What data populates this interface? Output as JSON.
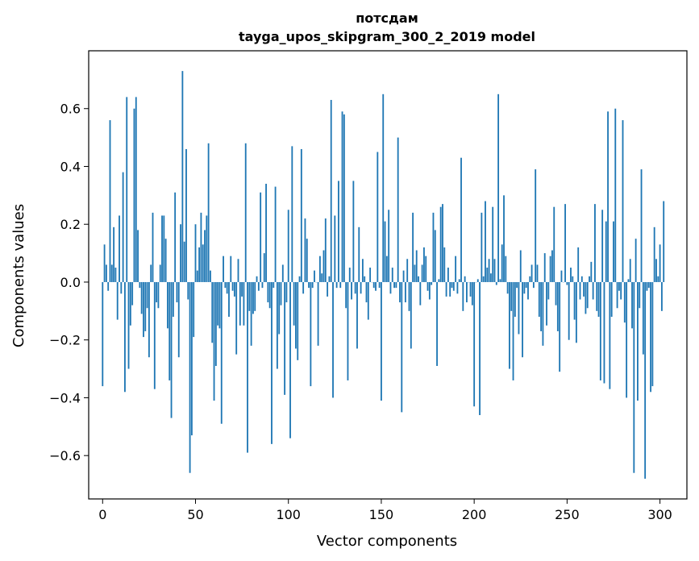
{
  "chart_data": {
    "type": "bar",
    "title": "потсдам",
    "subtitle": "tayga_upos_skipgram_300_2_2019 model",
    "xlabel": "Vector components",
    "ylabel": "Components values",
    "xlim": [
      -7.5,
      314.5
    ],
    "ylim": [
      -0.75,
      0.8
    ],
    "xticks": [
      0,
      50,
      100,
      150,
      200,
      250,
      300
    ],
    "yticks": [
      -0.6,
      -0.4,
      -0.2,
      0.0,
      0.2,
      0.4,
      0.6
    ],
    "ytick_labels": [
      "−0.6",
      "−0.4",
      "−0.2",
      "0.0",
      "0.2",
      "0.4",
      "0.6"
    ],
    "bar_color": "#1f77b4",
    "grid": false,
    "values": [
      -0.36,
      0.13,
      0.06,
      -0.03,
      0.56,
      0.06,
      0.19,
      0.05,
      -0.13,
      0.23,
      -0.04,
      0.38,
      -0.38,
      0.64,
      -0.3,
      -0.15,
      -0.08,
      0.6,
      0.64,
      0.18,
      -0.02,
      -0.11,
      -0.19,
      -0.17,
      -0.09,
      -0.26,
      0.06,
      0.24,
      -0.37,
      -0.07,
      -0.09,
      0.06,
      0.23,
      0.23,
      0.15,
      -0.16,
      -0.34,
      -0.47,
      -0.12,
      0.31,
      -0.07,
      -0.26,
      0.2,
      0.73,
      0.14,
      0.46,
      -0.06,
      -0.66,
      -0.53,
      -0.19,
      0.2,
      0.04,
      0.12,
      0.24,
      0.13,
      0.18,
      0.23,
      0.48,
      0.04,
      -0.21,
      -0.41,
      -0.29,
      -0.15,
      -0.16,
      -0.49,
      0.09,
      -0.02,
      -0.04,
      -0.12,
      0.09,
      -0.03,
      -0.05,
      -0.25,
      0.08,
      -0.15,
      -0.05,
      -0.15,
      0.48,
      -0.59,
      -0.1,
      -0.22,
      -0.11,
      -0.1,
      0.02,
      -0.03,
      0.31,
      -0.02,
      0.1,
      0.34,
      -0.07,
      -0.09,
      -0.56,
      -0.02,
      0.33,
      -0.3,
      -0.18,
      -0.08,
      0.06,
      -0.39,
      -0.07,
      0.25,
      -0.54,
      0.47,
      -0.15,
      -0.23,
      -0.27,
      0.02,
      0.46,
      -0.04,
      0.22,
      0.15,
      -0.02,
      -0.36,
      -0.02,
      0.04,
      0.0,
      -0.22,
      0.09,
      0.03,
      0.11,
      0.22,
      -0.05,
      0.02,
      0.63,
      -0.4,
      0.23,
      -0.02,
      0.35,
      -0.02,
      0.59,
      0.58,
      -0.09,
      -0.34,
      0.05,
      -0.06,
      0.35,
      -0.04,
      -0.23,
      0.19,
      -0.04,
      0.08,
      0.02,
      -0.07,
      -0.13,
      0.05,
      0.0,
      -0.02,
      -0.03,
      0.45,
      -0.02,
      -0.41,
      0.65,
      0.21,
      0.09,
      0.25,
      -0.04,
      0.05,
      -0.02,
      -0.02,
      0.5,
      -0.07,
      -0.45,
      0.04,
      -0.07,
      0.08,
      -0.1,
      -0.23,
      0.24,
      0.06,
      0.11,
      0.02,
      -0.08,
      0.06,
      0.12,
      0.09,
      -0.03,
      -0.06,
      -0.01,
      0.24,
      0.18,
      -0.29,
      0.01,
      0.26,
      0.27,
      0.12,
      -0.05,
      0.05,
      -0.05,
      -0.02,
      -0.03,
      0.09,
      -0.04,
      0.01,
      0.43,
      -0.1,
      0.02,
      -0.07,
      0.0,
      -0.05,
      -0.08,
      -0.43,
      0.0,
      0.01,
      -0.46,
      0.24,
      0.02,
      0.28,
      0.05,
      0.08,
      0.03,
      0.26,
      0.08,
      -0.01,
      0.65,
      0.01,
      0.13,
      0.3,
      0.09,
      -0.04,
      -0.3,
      -0.1,
      -0.34,
      -0.12,
      -0.02,
      -0.18,
      0.11,
      -0.26,
      -0.04,
      -0.02,
      -0.06,
      0.02,
      0.06,
      -0.02,
      0.39,
      0.06,
      -0.12,
      -0.17,
      -0.22,
      0.1,
      -0.15,
      -0.06,
      0.09,
      0.11,
      0.26,
      -0.08,
      -0.17,
      -0.31,
      0.04,
      0.0,
      0.27,
      -0.01,
      -0.2,
      0.05,
      0.02,
      -0.13,
      -0.21,
      0.12,
      -0.06,
      0.02,
      -0.05,
      -0.11,
      -0.09,
      0.02,
      0.07,
      -0.06,
      0.27,
      -0.1,
      -0.12,
      -0.34,
      0.25,
      -0.35,
      0.21,
      0.59,
      -0.37,
      -0.12,
      0.21,
      0.6,
      -0.09,
      -0.03,
      -0.06,
      0.56,
      -0.14,
      -0.4,
      0.01,
      0.08,
      -0.16,
      -0.66,
      0.15,
      -0.41,
      -0.09,
      0.39,
      -0.25,
      -0.68,
      -0.03,
      -0.02,
      -0.38,
      -0.36,
      0.19,
      0.08,
      0.02,
      0.13,
      -0.1,
      0.28
    ]
  }
}
